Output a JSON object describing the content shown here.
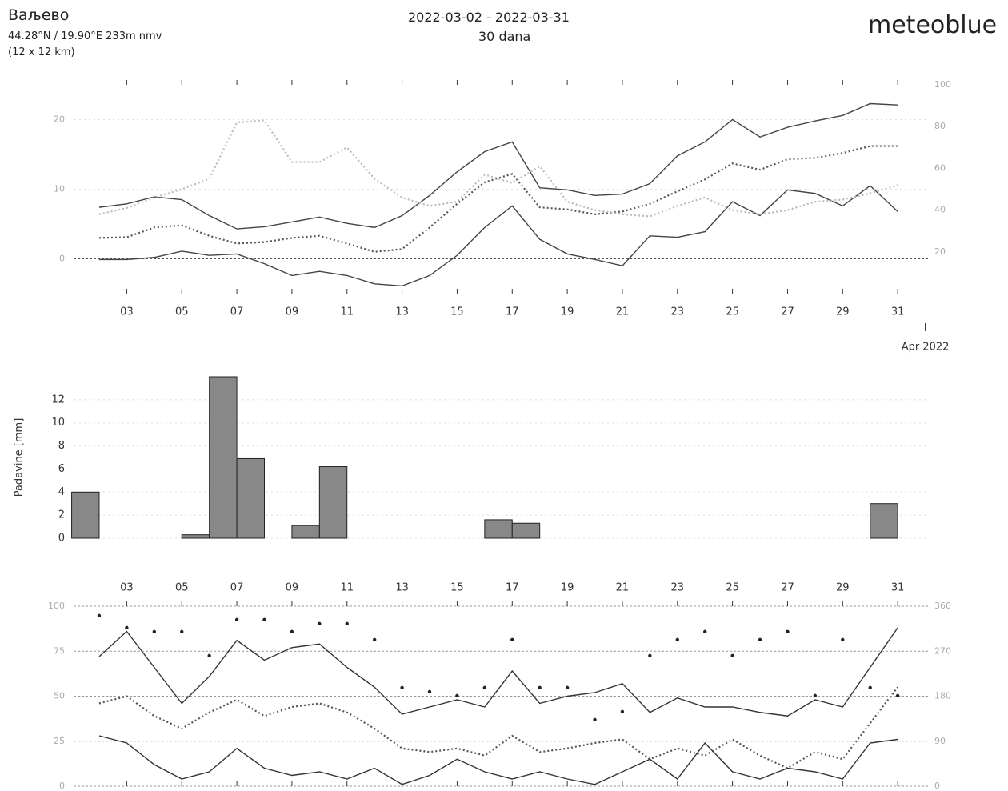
{
  "header": {
    "place": "Ваљево",
    "coords": "44.28°N / 19.90°E 233m nmv",
    "grid": "(12 x 12 km)",
    "period": "2022-03-02 - 2022-03-31",
    "days": "30 dana",
    "brand": "meteoblue"
  },
  "chart_data": [
    {
      "type": "line",
      "x": [
        2,
        3,
        4,
        5,
        6,
        7,
        8,
        9,
        10,
        11,
        12,
        13,
        14,
        15,
        16,
        17,
        18,
        19,
        20,
        21,
        22,
        23,
        24,
        25,
        26,
        27,
        28,
        29,
        30,
        31
      ],
      "xlim": [
        1.1,
        32.1
      ],
      "xticks": [
        {
          "value": 3,
          "label": "03"
        },
        {
          "value": 5,
          "label": "05"
        },
        {
          "value": 7,
          "label": "07"
        },
        {
          "value": 9,
          "label": "09"
        },
        {
          "value": 11,
          "label": "11"
        },
        {
          "value": 13,
          "label": "13"
        },
        {
          "value": 15,
          "label": "15"
        },
        {
          "value": 17,
          "label": "17"
        },
        {
          "value": 19,
          "label": "19"
        },
        {
          "value": 21,
          "label": "21"
        },
        {
          "value": 23,
          "label": "23"
        },
        {
          "value": 25,
          "label": "25"
        },
        {
          "value": 27,
          "label": "27"
        },
        {
          "value": 29,
          "label": "29"
        },
        {
          "value": 31,
          "label": "31"
        }
      ],
      "xticks2": [
        {
          "value": 32,
          "label": "Apr 2022"
        }
      ],
      "ylim": [
        -5,
        25
      ],
      "yticks": [
        0,
        10,
        20
      ],
      "y2lim": [
        0,
        100
      ],
      "y2ticks": [
        20,
        40,
        60,
        80,
        100
      ],
      "reference_line": 0,
      "series": [
        {
          "color": "#444",
          "dash": false,
          "values": [
            7.4,
            7.9,
            8.9,
            8.5,
            6.2,
            4.3,
            4.6,
            5.3,
            6,
            5.1,
            4.5,
            6.2,
            9.1,
            12.5,
            15.4,
            16.8,
            10.2,
            9.9,
            9.1,
            9.3,
            10.8,
            14.8,
            16.8,
            20,
            17.5,
            18.9,
            19.8,
            20.6,
            22.3,
            22.1
          ]
        },
        {
          "color": "#555",
          "dash": true,
          "values": [
            3,
            3.1,
            4.5,
            4.8,
            3.3,
            2.2,
            2.4,
            3,
            3.3,
            2.2,
            1,
            1.4,
            4.5,
            7.9,
            11,
            12.2,
            7.4,
            7.1,
            6.4,
            6.8,
            7.9,
            9.7,
            11.4,
            13.7,
            12.8,
            14.3,
            14.5,
            15.2,
            16.2,
            16.2
          ]
        },
        {
          "color": "#444",
          "dash": false,
          "values": [
            -0.1,
            -0.1,
            0.2,
            1.1,
            0.5,
            0.7,
            -0.7,
            -2.4,
            -1.8,
            -2.4,
            -3.6,
            -3.9,
            -2.4,
            0.5,
            4.5,
            7.6,
            2.8,
            0.7,
            -0.1,
            -1,
            3.3,
            3.1,
            3.9,
            8.2,
            6.2,
            9.9,
            9.4,
            7.6,
            10.5,
            6.8
          ]
        },
        {
          "color": "#bbb",
          "dash": true,
          "axis": "y2",
          "values": [
            38,
            41,
            46,
            50,
            55,
            82,
            83,
            63,
            63,
            70,
            55,
            46,
            42,
            44,
            57,
            53,
            61,
            44,
            40,
            38,
            37,
            42,
            46,
            40,
            38,
            40,
            44,
            45,
            48,
            52
          ]
        }
      ]
    },
    {
      "type": "bar",
      "x": [
        2,
        3,
        4,
        5,
        6,
        7,
        8,
        9,
        10,
        11,
        12,
        13,
        14,
        15,
        16,
        17,
        18,
        19,
        20,
        21,
        22,
        23,
        24,
        25,
        26,
        27,
        28,
        29,
        30,
        31
      ],
      "xlim": [
        1.1,
        32.1
      ],
      "ylim": [
        0,
        14
      ],
      "yticks": [
        0,
        2,
        4,
        6,
        8,
        10,
        12
      ],
      "y_label": "Padavine [mm]",
      "color": "#888",
      "values": [
        4,
        0,
        0,
        0,
        0.3,
        14,
        6.9,
        0,
        1.1,
        6.2,
        0,
        0,
        0,
        0,
        0,
        1.6,
        1.3,
        0,
        0,
        0,
        0,
        0,
        0,
        0,
        0,
        0,
        0,
        0,
        0,
        3
      ]
    },
    {
      "type": "line",
      "x": [
        2,
        3,
        4,
        5,
        6,
        7,
        8,
        9,
        10,
        11,
        12,
        13,
        14,
        15,
        16,
        17,
        18,
        19,
        20,
        21,
        22,
        23,
        24,
        25,
        26,
        27,
        28,
        29,
        30,
        31
      ],
      "xlim": [
        1.1,
        32.1
      ],
      "xticks": [
        {
          "value": 3,
          "label": "03"
        },
        {
          "value": 5,
          "label": "05"
        },
        {
          "value": 7,
          "label": "07"
        },
        {
          "value": 9,
          "label": "09"
        },
        {
          "value": 11,
          "label": "11"
        },
        {
          "value": 13,
          "label": "13"
        },
        {
          "value": 15,
          "label": "15"
        },
        {
          "value": 17,
          "label": "17"
        },
        {
          "value": 19,
          "label": "19"
        },
        {
          "value": 21,
          "label": "21"
        },
        {
          "value": 23,
          "label": "23"
        },
        {
          "value": 25,
          "label": "25"
        },
        {
          "value": 27,
          "label": "27"
        },
        {
          "value": 29,
          "label": "29"
        },
        {
          "value": 31,
          "label": "31"
        }
      ],
      "ylim": [
        0,
        100
      ],
      "yticks": [
        0,
        25,
        50,
        75,
        100
      ],
      "y2lim": [
        0,
        360
      ],
      "y2ticks": [
        0,
        90,
        180,
        270,
        360
      ],
      "series": [
        {
          "color": "#333",
          "dash": false,
          "values": [
            72,
            86,
            66,
            46,
            61,
            81,
            70,
            77,
            79,
            66,
            55,
            40,
            44,
            48,
            44,
            64,
            46,
            50,
            52,
            57,
            41,
            49,
            44,
            44,
            41,
            39,
            48,
            44,
            66,
            88
          ]
        },
        {
          "color": "#555",
          "dash": true,
          "values": [
            46,
            50,
            39,
            32,
            41,
            48,
            39,
            44,
            46,
            41,
            32,
            21,
            19,
            21,
            17,
            28,
            19,
            21,
            24,
            26,
            15,
            21,
            17,
            26,
            17,
            10,
            19,
            15,
            35,
            55
          ]
        },
        {
          "color": "#333",
          "dash": false,
          "values": [
            28,
            24,
            12,
            4,
            8,
            21,
            10,
            6,
            8,
            4,
            10,
            1,
            6,
            15,
            8,
            4,
            8,
            4,
            1,
            8,
            15,
            4,
            24,
            8,
            4,
            10,
            8,
            4,
            24,
            26
          ]
        },
        {
          "color": "#222",
          "dash": false,
          "points": true,
          "axis": "y2",
          "values": [
            341,
            317,
            309,
            309,
            261,
            333,
            333,
            309,
            325,
            325,
            293,
            197,
            189,
            181,
            197,
            293,
            197,
            197,
            133,
            149,
            261,
            293,
            309,
            261,
            293,
            309,
            181,
            293,
            197,
            181
          ]
        }
      ]
    }
  ]
}
